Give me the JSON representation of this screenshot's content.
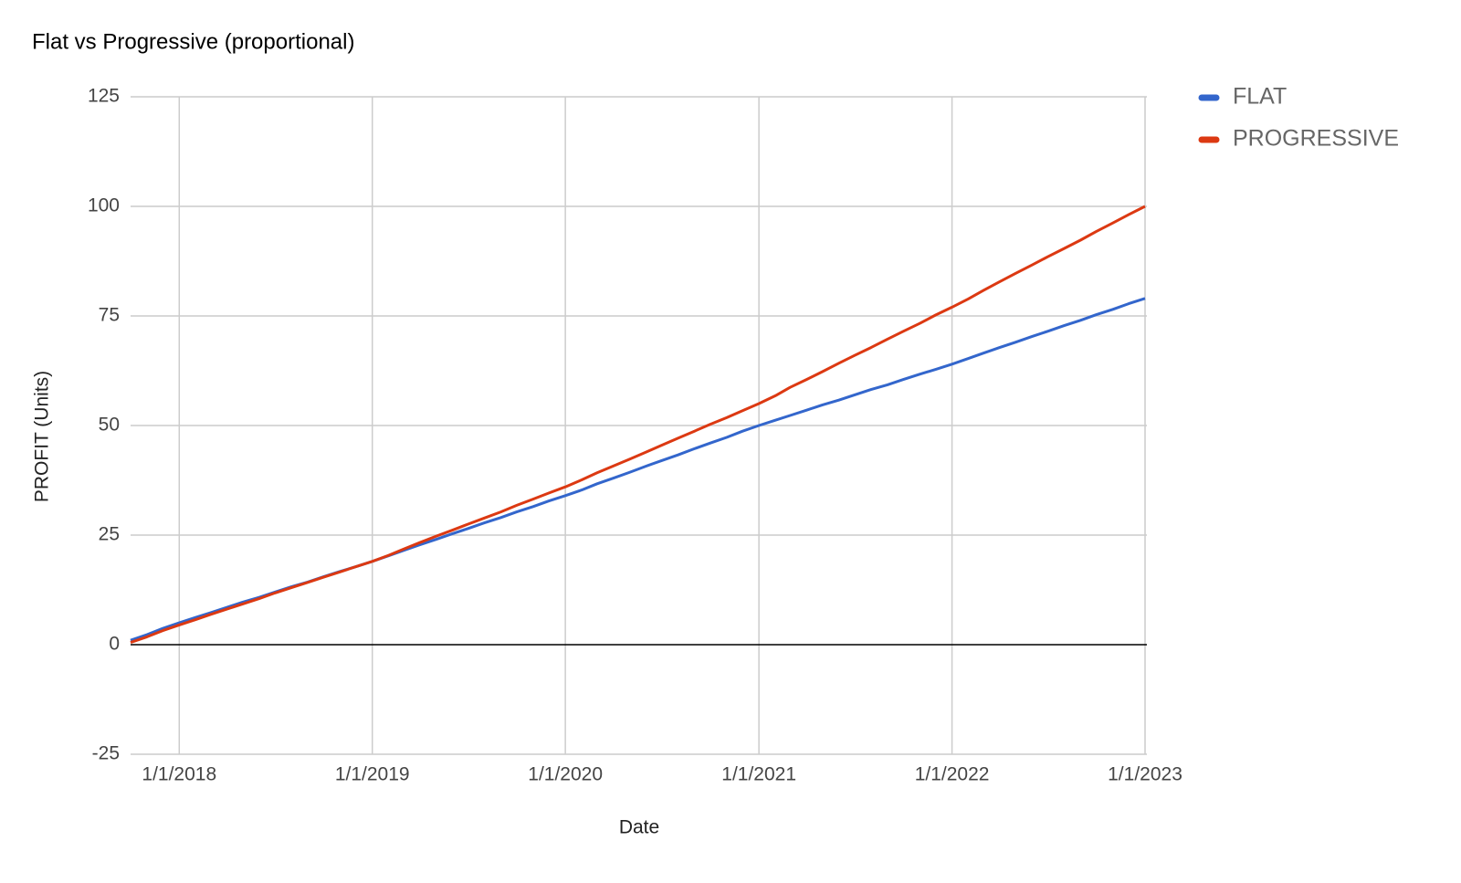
{
  "chart_data": {
    "type": "line",
    "title": "Flat vs Progressive (proportional)",
    "x_label": "Date",
    "y_label": "PROFIT (Units)",
    "x": [
      "10/1/2017",
      "11/1/2017",
      "12/1/2017",
      "1/1/2018",
      "2/1/2018",
      "3/1/2018",
      "4/1/2018",
      "5/1/2018",
      "6/1/2018",
      "7/1/2018",
      "8/1/2018",
      "9/1/2018",
      "10/1/2018",
      "11/1/2018",
      "12/1/2018",
      "1/1/2019",
      "2/1/2019",
      "3/1/2019",
      "4/1/2019",
      "5/1/2019",
      "6/1/2019",
      "7/1/2019",
      "8/1/2019",
      "9/1/2019",
      "10/1/2019",
      "11/1/2019",
      "12/1/2019",
      "1/1/2020",
      "2/1/2020",
      "3/1/2020",
      "4/1/2020",
      "5/1/2020",
      "6/1/2020",
      "7/1/2020",
      "8/1/2020",
      "9/1/2020",
      "10/1/2020",
      "11/1/2020",
      "12/1/2020",
      "1/1/2021",
      "2/1/2021",
      "3/1/2021",
      "4/1/2021",
      "5/1/2021",
      "6/1/2021",
      "7/1/2021",
      "8/1/2021",
      "9/1/2021",
      "10/1/2021",
      "11/1/2021",
      "12/1/2021",
      "1/1/2022",
      "2/1/2022",
      "3/1/2022",
      "4/1/2022",
      "5/1/2022",
      "6/1/2022",
      "7/1/2022",
      "8/1/2022",
      "9/1/2022",
      "10/1/2022",
      "11/1/2022",
      "12/1/2022",
      "1/1/2023"
    ],
    "series": [
      {
        "name": "FLAT",
        "color": "#3366cc",
        "values": [
          1,
          2.3,
          3.7,
          5,
          6.2,
          7.3,
          8.5,
          9.7,
          10.8,
          12,
          13.2,
          14.3,
          15.5,
          16.7,
          17.8,
          19,
          20.3,
          21.5,
          22.8,
          24,
          25.3,
          26.5,
          27.8,
          29,
          30.3,
          31.5,
          32.8,
          34,
          35.3,
          36.7,
          38,
          39.3,
          40.7,
          42,
          43.3,
          44.7,
          46,
          47.3,
          48.7,
          50,
          51.2,
          52.3,
          53.5,
          54.7,
          55.8,
          57,
          58.2,
          59.3,
          60.5,
          61.7,
          62.8,
          64,
          65.3,
          66.5,
          67.8,
          69,
          70.3,
          71.5,
          72.8,
          74,
          75.3,
          76.5,
          77.8,
          79
        ]
      },
      {
        "name": "PROGRESSIVE",
        "color": "#dc3912",
        "values": [
          0.5,
          1.8,
          3.2,
          4.5,
          5.7,
          6.9,
          8.1,
          9.3,
          10.5,
          11.8,
          13,
          14.2,
          15.4,
          16.6,
          17.8,
          19,
          20.4,
          21.8,
          23.3,
          24.7,
          26.1,
          27.5,
          28.9,
          30.3,
          31.8,
          33.2,
          34.6,
          36,
          37.6,
          39.2,
          40.8,
          42.3,
          43.9,
          45.5,
          47.1,
          48.7,
          50.3,
          51.8,
          53.4,
          55,
          56.8,
          58.7,
          60.5,
          62.3,
          64.2,
          66,
          67.8,
          69.7,
          71.5,
          73.3,
          75.2,
          77,
          78.9,
          80.8,
          82.8,
          84.7,
          86.6,
          88.5,
          90.4,
          92.3,
          94.3,
          96.2,
          98.1,
          100
        ]
      }
    ],
    "xlim": [
      "10/1/2017",
      "1/1/2023"
    ],
    "xticks": [
      "1/1/2018",
      "1/1/2019",
      "1/1/2020",
      "1/1/2021",
      "1/1/2022",
      "1/1/2023"
    ],
    "ylim": [
      -25,
      125
    ],
    "yticks": [
      -25,
      0,
      25,
      50,
      75,
      100,
      125
    ],
    "grid": true,
    "legend": "right"
  }
}
